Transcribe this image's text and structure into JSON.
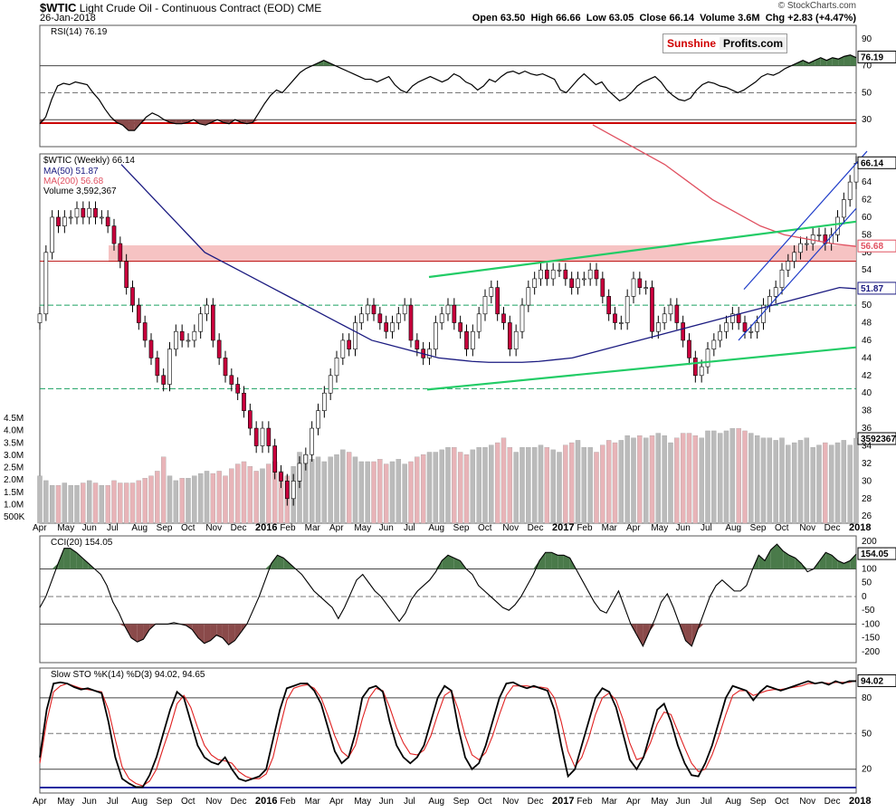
{
  "header": {
    "symbol": "$WTIC",
    "name": "Light Crude Oil - Continuous Contract (EOD)",
    "exchange": "CME",
    "date": "26-Jan-2018",
    "open_label": "Open",
    "open": "63.50",
    "high_label": "High",
    "high": "66.66",
    "low_label": "Low",
    "low": "63.05",
    "close_label": "Close",
    "close": "66.14",
    "volume_label": "Volume",
    "volume": "3.6M",
    "chg_label": "Chg",
    "chg": "+2.83 (+4.47%)",
    "brand": "© StockCharts.com",
    "logo_part1": "Sunshine",
    "logo_part2": "Profits.com"
  },
  "colors": {
    "up": "#ffffff",
    "down": "#c8003c",
    "ma50": "#1a1a80",
    "ma200": "#e05060",
    "channel": "#1e3cc8",
    "green": "#22cc66",
    "support": "#c02020"
  },
  "chart_data": [
    {
      "type": "line",
      "title": "RSI(14) 76.19",
      "yticks": [
        30,
        50,
        70,
        90
      ],
      "ylim": [
        10,
        100
      ],
      "last_label": "76.19",
      "values": [
        27,
        32,
        45,
        55,
        57,
        56,
        58,
        57,
        56,
        50,
        45,
        38,
        32,
        28,
        26,
        22,
        22,
        27,
        32,
        35,
        33,
        30,
        28,
        27,
        27,
        28,
        30,
        27,
        26,
        28,
        30,
        28,
        27,
        30,
        28,
        27,
        28,
        35,
        42,
        48,
        52,
        50,
        55,
        60,
        65,
        68,
        70,
        72,
        74,
        72,
        70,
        68,
        66,
        64,
        62,
        60,
        60,
        58,
        60,
        62,
        56,
        52,
        50,
        55,
        58,
        60,
        62,
        60,
        58,
        60,
        64,
        62,
        58,
        56,
        52,
        55,
        60,
        58,
        62,
        65,
        66,
        64,
        66,
        64,
        63,
        64,
        62,
        60,
        52,
        50,
        55,
        60,
        64,
        60,
        56,
        58,
        52,
        48,
        44,
        46,
        50,
        55,
        58,
        60,
        62,
        58,
        52,
        48,
        45,
        44,
        46,
        52,
        56,
        58,
        57,
        55,
        54,
        52,
        50,
        52,
        55,
        58,
        62,
        64,
        63,
        65,
        68,
        70,
        72,
        74,
        72,
        74,
        76,
        74,
        76,
        75,
        77,
        78,
        76
      ]
    },
    {
      "type": "candlestick",
      "title": "$WTIC (Weekly) 66.14",
      "legend": [
        "MA(50) 51.87",
        "MA(200) 56.68",
        "Volume 3,592,367"
      ],
      "yticks": [
        26,
        28,
        30,
        32,
        34,
        36,
        38,
        40,
        42,
        44,
        46,
        48,
        50,
        52,
        54,
        56,
        58,
        60,
        62,
        64
      ],
      "ylim": [
        25.2,
        67.2
      ],
      "price_labels": [
        "66.14",
        "56.68",
        "51.87"
      ],
      "closes": [
        49,
        56,
        60,
        59,
        60,
        60,
        61,
        60,
        61,
        60,
        60,
        59,
        57,
        55,
        52,
        50,
        48,
        46,
        44,
        42,
        41,
        45,
        47,
        46,
        46,
        47,
        49,
        50,
        46,
        44,
        42,
        41,
        40,
        38,
        36,
        34,
        36,
        34,
        31,
        30,
        28,
        30,
        32,
        33,
        36,
        38,
        40,
        42,
        44,
        46,
        45,
        48,
        49,
        50,
        49,
        48,
        47,
        48,
        49,
        50,
        46,
        45,
        44,
        45,
        48,
        49,
        50,
        48,
        47,
        45,
        47,
        49,
        51,
        52,
        49,
        48,
        45,
        47,
        50,
        52,
        53,
        54,
        53,
        54,
        54,
        53,
        52,
        53,
        53,
        54,
        53,
        51,
        49,
        48,
        48,
        51,
        53,
        52,
        52,
        47,
        48,
        49,
        50,
        48,
        46,
        44,
        42,
        43,
        45,
        46,
        47,
        48,
        49,
        48,
        47,
        47,
        48,
        50,
        51,
        52,
        54,
        55,
        56,
        57,
        57,
        58,
        58,
        57,
        58,
        60,
        62,
        64,
        66.14
      ],
      "ma50": [
        66,
        64,
        62,
        60,
        58,
        56,
        55,
        54,
        53,
        52,
        51,
        50,
        49,
        48,
        47,
        46,
        45.5,
        45,
        44.5,
        44,
        43.8,
        43.6,
        43.5,
        43.5,
        43.5,
        43.6,
        43.8,
        44,
        44.5,
        45,
        45.5,
        46,
        46.5,
        47,
        47.5,
        48,
        48.5,
        49,
        49.5,
        50,
        50.5,
        51,
        51.5,
        52,
        51.87
      ],
      "ma200": [
        70.5,
        69,
        67.5,
        66,
        64,
        62,
        60.5,
        59,
        58,
        57.5,
        57,
        56.68
      ],
      "volume_unit": "M",
      "volume_yticks": [
        "4.5M",
        "4.0M",
        "3.5M",
        "3.0M",
        "2.5M",
        "2.0M",
        "1.5M",
        "1.0M",
        "500K"
      ],
      "volume_last_label": "3592367",
      "volume": [
        2.0,
        1.8,
        1.6,
        1.6,
        1.7,
        1.6,
        1.6,
        1.7,
        1.8,
        1.7,
        1.6,
        1.6,
        1.8,
        1.7,
        1.7,
        1.7,
        1.8,
        1.9,
        2.0,
        2.2,
        2.8,
        2.0,
        1.8,
        1.9,
        1.9,
        2.0,
        2.1,
        2.2,
        2.1,
        2.2,
        2.0,
        2.3,
        2.5,
        2.6,
        2.4,
        2.2,
        2.3,
        2.5,
        2.6,
        2.2,
        2.0,
        2.4,
        3.0,
        2.9,
        2.7,
        2.8,
        2.6,
        2.8,
        2.9,
        3.1,
        3.0,
        2.8,
        2.6,
        2.6,
        2.6,
        2.7,
        2.5,
        2.6,
        2.7,
        2.5,
        2.6,
        2.8,
        2.9,
        3.0,
        3.0,
        3.1,
        3.2,
        3.2,
        3.0,
        2.9,
        3.1,
        3.2,
        3.2,
        3.3,
        3.4,
        3.6,
        3.2,
        3.0,
        3.2,
        3.2,
        3.2,
        3.3,
        3.2,
        3.1,
        3.0,
        3.3,
        3.4,
        3.5,
        3.2,
        3.2,
        3.0,
        3.3,
        3.5,
        3.4,
        3.5,
        3.7,
        3.6,
        3.7,
        3.6,
        3.7,
        3.8,
        3.7,
        3.4,
        3.6,
        3.8,
        3.8,
        3.7,
        3.6,
        3.9,
        3.9,
        3.8,
        3.9,
        4.0,
        4.0,
        3.9,
        3.8,
        3.7,
        3.6,
        3.6,
        3.5,
        3.6,
        3.3,
        3.4,
        3.5,
        3.6,
        3.2,
        3.3,
        3.4,
        3.3,
        3.4,
        3.5,
        3.3,
        3.59
      ]
    },
    {
      "type": "line",
      "title": "CCI(20) 154.05",
      "yticks": [
        200,
        150,
        100,
        50,
        0,
        -50,
        -100,
        -150,
        -200
      ],
      "ylim": [
        -240,
        220
      ],
      "last_label": "154.05",
      "values": [
        -40,
        0,
        60,
        120,
        175,
        175,
        160,
        140,
        120,
        100,
        80,
        40,
        -20,
        -60,
        -110,
        -150,
        -165,
        -155,
        -120,
        -100,
        -100,
        -100,
        -95,
        -100,
        -105,
        -120,
        -150,
        -170,
        -160,
        -140,
        -150,
        -175,
        -160,
        -130,
        -100,
        -50,
        0,
        60,
        120,
        150,
        140,
        120,
        100,
        80,
        50,
        20,
        0,
        -20,
        -40,
        -80,
        -40,
        10,
        60,
        80,
        50,
        20,
        0,
        -30,
        -60,
        -90,
        -60,
        -10,
        20,
        40,
        60,
        90,
        130,
        150,
        140,
        130,
        100,
        80,
        40,
        20,
        0,
        -20,
        -40,
        -50,
        -30,
        0,
        40,
        80,
        130,
        160,
        160,
        150,
        150,
        140,
        100,
        60,
        20,
        -20,
        -50,
        -60,
        -20,
        20,
        -40,
        -100,
        -140,
        -180,
        -130,
        -80,
        -20,
        10,
        -40,
        -100,
        -160,
        -180,
        -120,
        -60,
        0,
        40,
        60,
        40,
        20,
        20,
        40,
        100,
        150,
        130,
        170,
        190,
        165,
        150,
        140,
        120,
        90,
        100,
        130,
        160,
        150,
        130,
        120,
        130,
        154
      ]
    },
    {
      "type": "line",
      "title": "Slow STO %K(14) %D(3) 94.02, 94.65",
      "series": [
        {
          "name": "%K(14) 94.02",
          "values": [
            30,
            70,
            92,
            93,
            92,
            89,
            87,
            88,
            86,
            84,
            60,
            30,
            12,
            8,
            5,
            5,
            15,
            30,
            50,
            70,
            85,
            80,
            60,
            40,
            30,
            26,
            24,
            30,
            20,
            12,
            10,
            12,
            14,
            20,
            45,
            70,
            88,
            90,
            92,
            92,
            86,
            75,
            55,
            35,
            25,
            30,
            50,
            80,
            88,
            90,
            85,
            60,
            40,
            30,
            25,
            30,
            40,
            60,
            80,
            90,
            86,
            55,
            30,
            20,
            25,
            40,
            60,
            80,
            92,
            93,
            90,
            88,
            90,
            88,
            86,
            70,
            40,
            14,
            20,
            40,
            60,
            80,
            88,
            85,
            72,
            50,
            28,
            20,
            30,
            50,
            70,
            75,
            60,
            40,
            25,
            15,
            14,
            25,
            40,
            60,
            80,
            90,
            88,
            86,
            78,
            85,
            90,
            88,
            86,
            88,
            90,
            92,
            94,
            92,
            93,
            91,
            94,
            92,
            94,
            94.02
          ]
        },
        {
          "name": "%D(3) 94.65",
          "values": [
            25,
            60,
            85,
            90,
            92,
            90,
            88,
            87,
            86,
            85,
            70,
            45,
            22,
            12,
            8,
            6,
            10,
            20,
            38,
            55,
            75,
            82,
            72,
            55,
            40,
            32,
            28,
            27,
            25,
            18,
            14,
            12,
            12,
            16,
            30,
            55,
            78,
            88,
            90,
            91,
            88,
            80,
            65,
            48,
            35,
            30,
            40,
            62,
            80,
            88,
            86,
            72,
            55,
            42,
            33,
            32,
            36,
            48,
            66,
            82,
            86,
            70,
            48,
            32,
            28,
            34,
            48,
            66,
            82,
            90,
            90,
            90,
            89,
            89,
            88,
            80,
            60,
            35,
            22,
            30,
            46,
            66,
            80,
            84,
            78,
            62,
            42,
            28,
            30,
            42,
            58,
            68,
            66,
            52,
            38,
            25,
            18,
            20,
            32,
            48,
            66,
            82,
            86,
            86,
            82,
            84,
            86,
            87,
            87,
            88,
            89,
            90,
            92,
            92,
            93,
            92,
            93,
            93,
            93,
            94.65
          ]
        }
      ],
      "yticks": [
        20,
        50,
        80
      ],
      "ylim": [
        0,
        105
      ],
      "last_label": "94.02"
    }
  ],
  "x_axis": [
    "Apr",
    "May",
    "Jun",
    "Jul",
    "Aug",
    "Sep",
    "Oct",
    "Nov",
    "Dec",
    "2016",
    "Feb",
    "Mar",
    "Apr",
    "May",
    "Jun",
    "Jul",
    "Aug",
    "Sep",
    "Oct",
    "Nov",
    "Dec",
    "2017",
    "Feb",
    "Mar",
    "Apr",
    "May",
    "Jun",
    "Jul",
    "Aug",
    "Sep",
    "Oct",
    "Nov",
    "Dec",
    "2018"
  ]
}
